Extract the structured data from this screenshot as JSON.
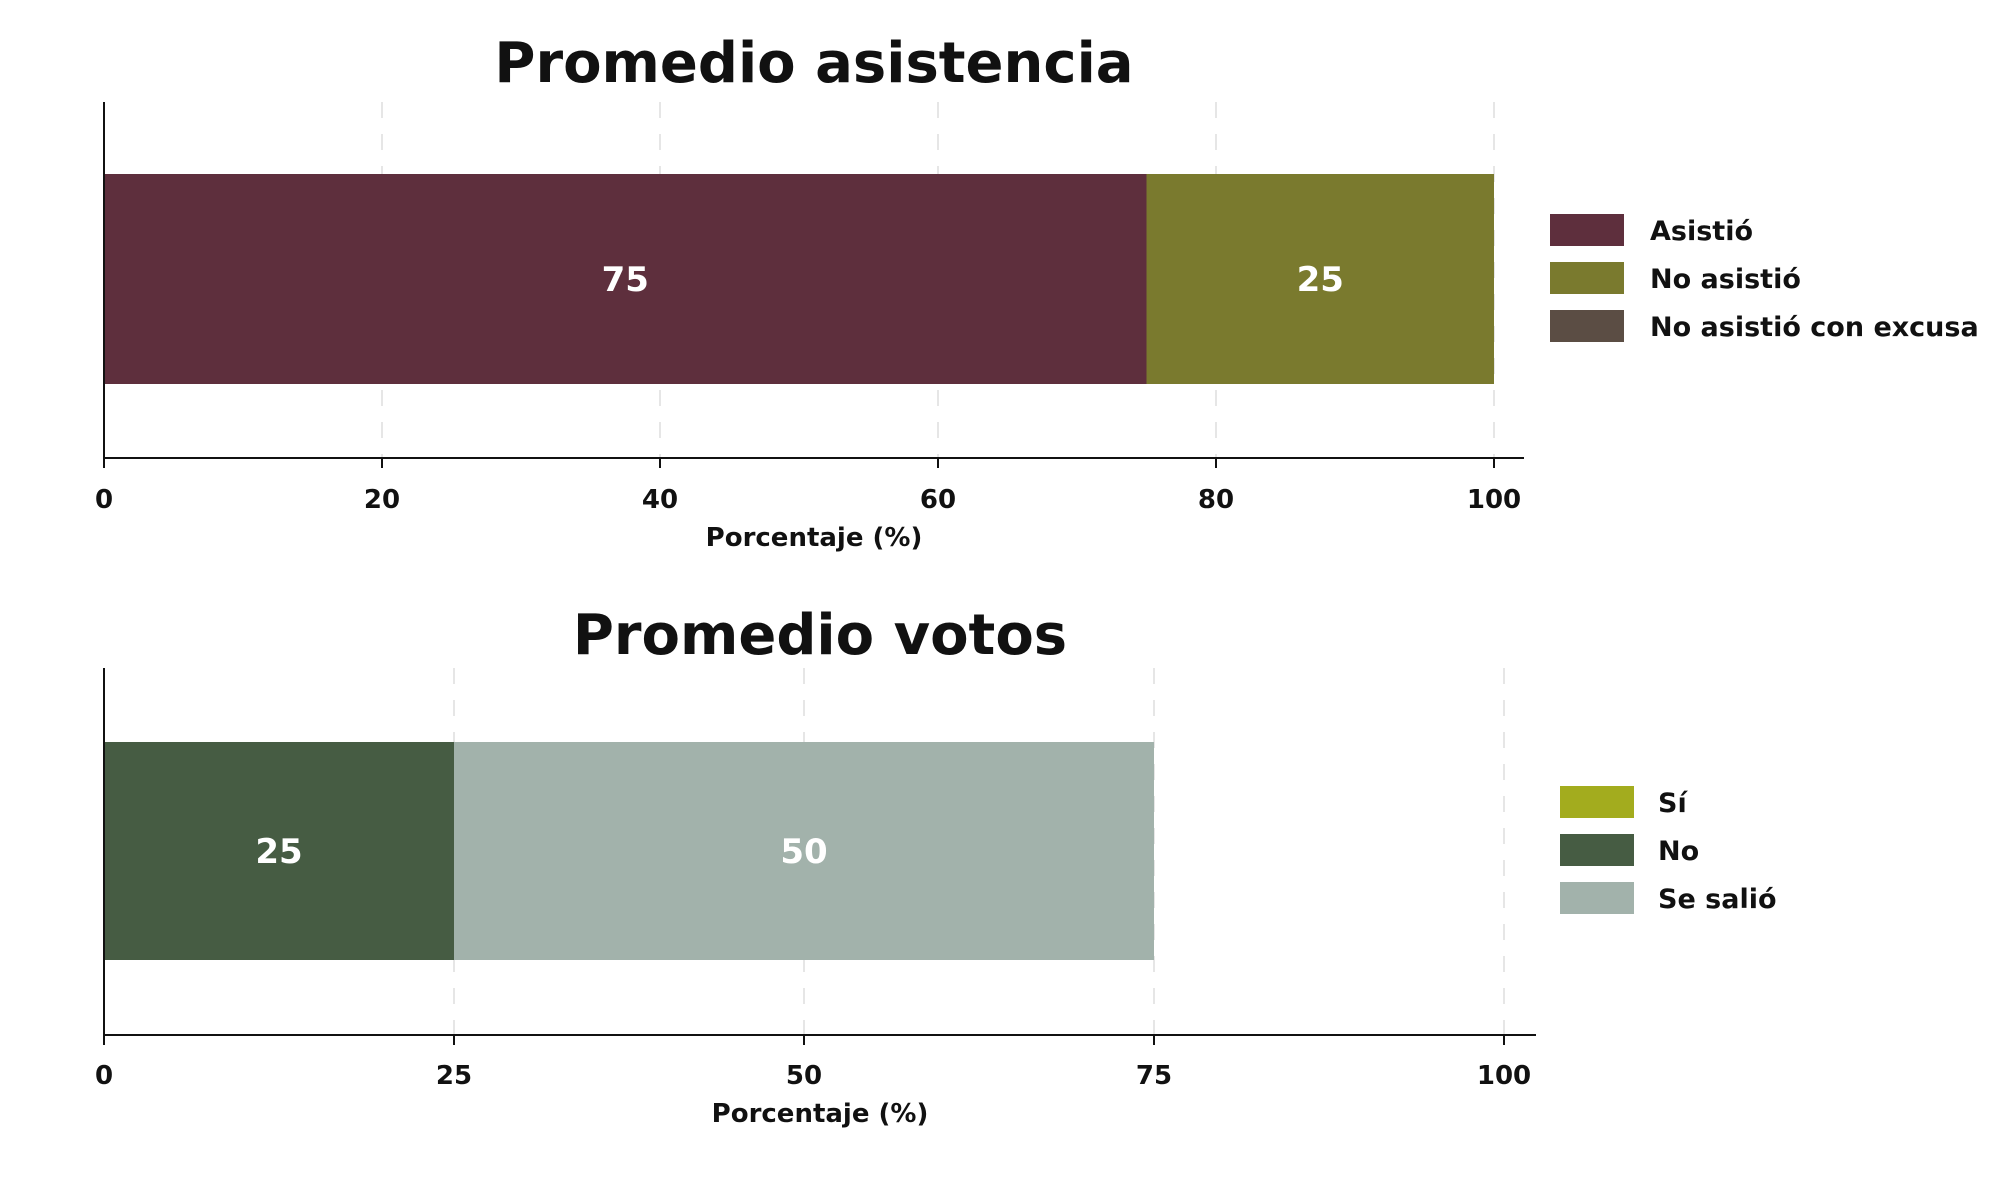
{
  "chart_data": [
    {
      "type": "bar",
      "orientation": "horizontal",
      "stacked": true,
      "title": "Promedio asistencia",
      "xlabel": "Porcentaje (%)",
      "xlim": [
        0,
        100
      ],
      "xticks": [
        0,
        20,
        40,
        60,
        80,
        100
      ],
      "grid": "vertical dashed",
      "legend_position": "right",
      "series": [
        {
          "name": "Asistió",
          "value": 75,
          "color": "#5e2f3d",
          "label": "75"
        },
        {
          "name": "No asistió",
          "value": 25,
          "color": "#7a7a2e",
          "label": "25"
        },
        {
          "name": "No asistió con excusa",
          "value": 0,
          "color": "#5b4d44",
          "label": ""
        }
      ]
    },
    {
      "type": "bar",
      "orientation": "horizontal",
      "stacked": true,
      "title": "Promedio votos",
      "xlabel": "Porcentaje (%)",
      "xlim": [
        0,
        100
      ],
      "xticks": [
        0,
        25,
        50,
        75,
        100
      ],
      "grid": "vertical dashed",
      "legend_position": "right",
      "series": [
        {
          "name": "Sí",
          "value": 0,
          "color": "#a3ac1e",
          "label": ""
        },
        {
          "name": "No",
          "value": 25,
          "color": "#465c43",
          "label": "25"
        },
        {
          "name": "Se salió",
          "value": 50,
          "color": "#a2b2ab",
          "label": "50"
        }
      ]
    }
  ]
}
